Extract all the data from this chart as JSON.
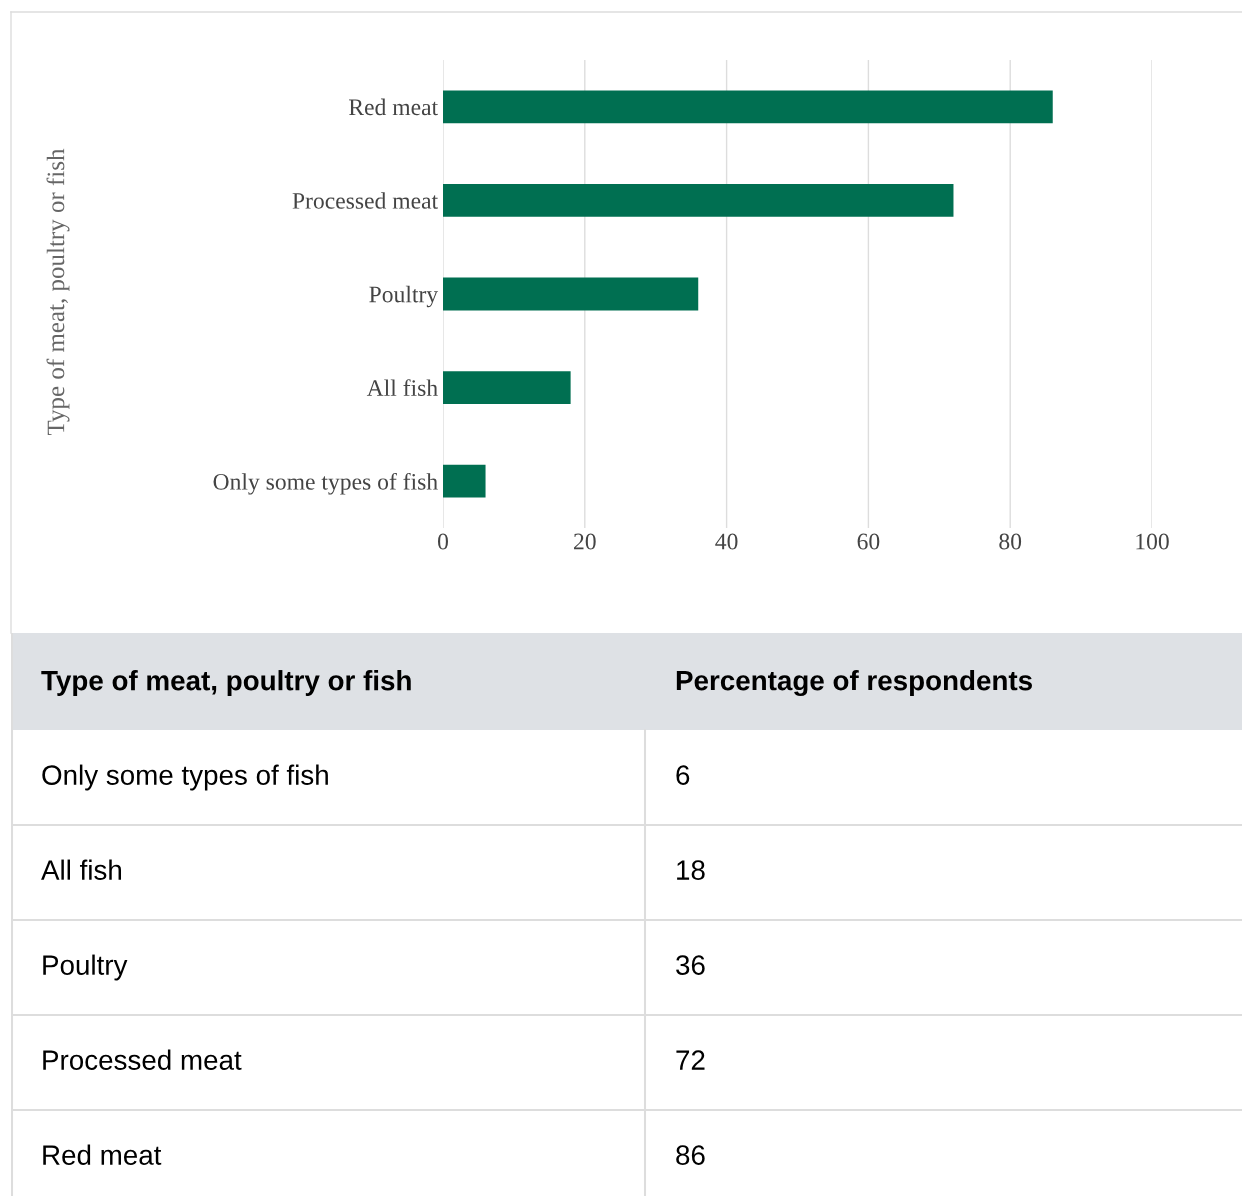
{
  "chart_data": [
    {
      "type": "bar",
      "orientation": "horizontal",
      "ylabel": "Type of meat, poultry or fish",
      "categories": [
        "Red meat",
        "Processed meat",
        "Poultry",
        "All fish",
        "Only some types of fish"
      ],
      "values": [
        86,
        72,
        36,
        18,
        6
      ],
      "color": "#006f51",
      "xlim": [
        0,
        100
      ],
      "xticks": [
        0,
        20,
        40,
        60,
        80,
        100
      ],
      "grid": "x"
    },
    {
      "type": "other",
      "annotations": [
        "Type of meat, poultry or fish",
        "Percentage of respondents"
      ],
      "categories": [
        "Only some types of fish",
        "All fish",
        "Poultry",
        "Processed meat",
        "Red meat"
      ],
      "values": [
        6,
        18,
        36,
        72,
        86
      ],
      "data_labels": true
    }
  ]
}
